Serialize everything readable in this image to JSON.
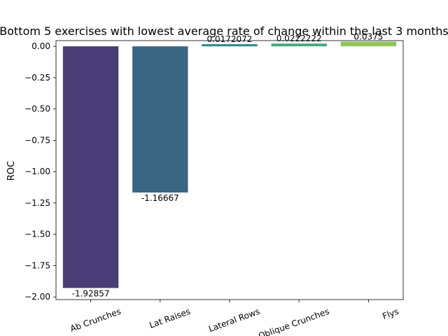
{
  "chart_data": {
    "type": "bar",
    "title": "Bottom 5 exercises with lowest average rate of change within the last 3 months",
    "xlabel": "",
    "ylabel": "ROC",
    "categories": [
      "Ab Crunches",
      "Lat Raises",
      "Lateral Rows",
      "Oblique Crunches",
      "Flys"
    ],
    "values": [
      -1.92857,
      -1.16667,
      0.0172072,
      0.0222222,
      0.0375
    ],
    "data_labels": [
      "-1.92857",
      "-1.16667",
      "0.0172072",
      "0.0222222",
      "0.0375"
    ],
    "colors": [
      "#483d77",
      "#3b6683",
      "#2e8a84",
      "#4aa77c",
      "#91c55a"
    ],
    "yticks": [
      "0.00",
      "−0.25",
      "−0.50",
      "−0.75",
      "−1.00",
      "−1.25",
      "−1.50",
      "−1.75",
      "−2.00"
    ],
    "ytick_values": [
      0,
      -0.25,
      -0.5,
      -0.75,
      -1.0,
      -1.25,
      -1.5,
      -1.75,
      -2.0
    ],
    "ylim": [
      -2.0213,
      0.0457
    ],
    "grid": false,
    "xtick_rotation_deg": 20
  }
}
